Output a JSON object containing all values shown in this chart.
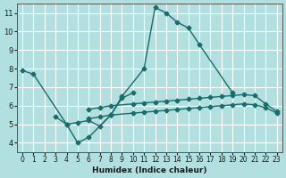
{
  "xlabel": "Humidex (Indice chaleur)",
  "bg_color": "#b2e0e0",
  "grid_color": "#ffffff",
  "line_color": "#1a6b6b",
  "x_values": [
    0,
    1,
    2,
    3,
    4,
    5,
    6,
    7,
    8,
    9,
    10,
    11,
    12,
    13,
    14,
    15,
    16,
    17,
    18,
    19,
    20,
    21,
    22,
    23
  ],
  "series1": [
    7.9,
    7.7,
    null,
    null,
    5.0,
    5.1,
    5.2,
    4.9,
    5.5,
    6.5,
    null,
    8.0,
    11.3,
    11.0,
    10.5,
    10.2,
    9.3,
    null,
    null,
    6.7,
    null,
    null,
    null,
    null
  ],
  "series2": [
    null,
    null,
    null,
    5.4,
    5.0,
    4.0,
    4.3,
    null,
    5.5,
    6.4,
    6.7,
    null,
    null,
    null,
    null,
    null,
    null,
    null,
    null,
    null,
    null,
    null,
    null,
    null
  ],
  "series3": [
    null,
    null,
    null,
    null,
    null,
    null,
    5.8,
    5.9,
    6.0,
    null,
    6.1,
    6.15,
    6.2,
    6.25,
    6.3,
    6.35,
    6.4,
    6.45,
    6.5,
    6.55,
    6.6,
    6.55,
    6.1,
    5.7
  ],
  "series4": [
    null,
    null,
    null,
    null,
    null,
    null,
    5.3,
    5.4,
    5.5,
    null,
    5.6,
    5.65,
    5.7,
    5.75,
    5.8,
    5.85,
    5.9,
    5.95,
    6.0,
    6.05,
    6.1,
    6.05,
    5.9,
    5.6
  ],
  "ylim": [
    3.5,
    11.5
  ],
  "xlim": [
    -0.5,
    23.5
  ],
  "yticks": [
    4,
    5,
    6,
    7,
    8,
    9,
    10,
    11
  ]
}
